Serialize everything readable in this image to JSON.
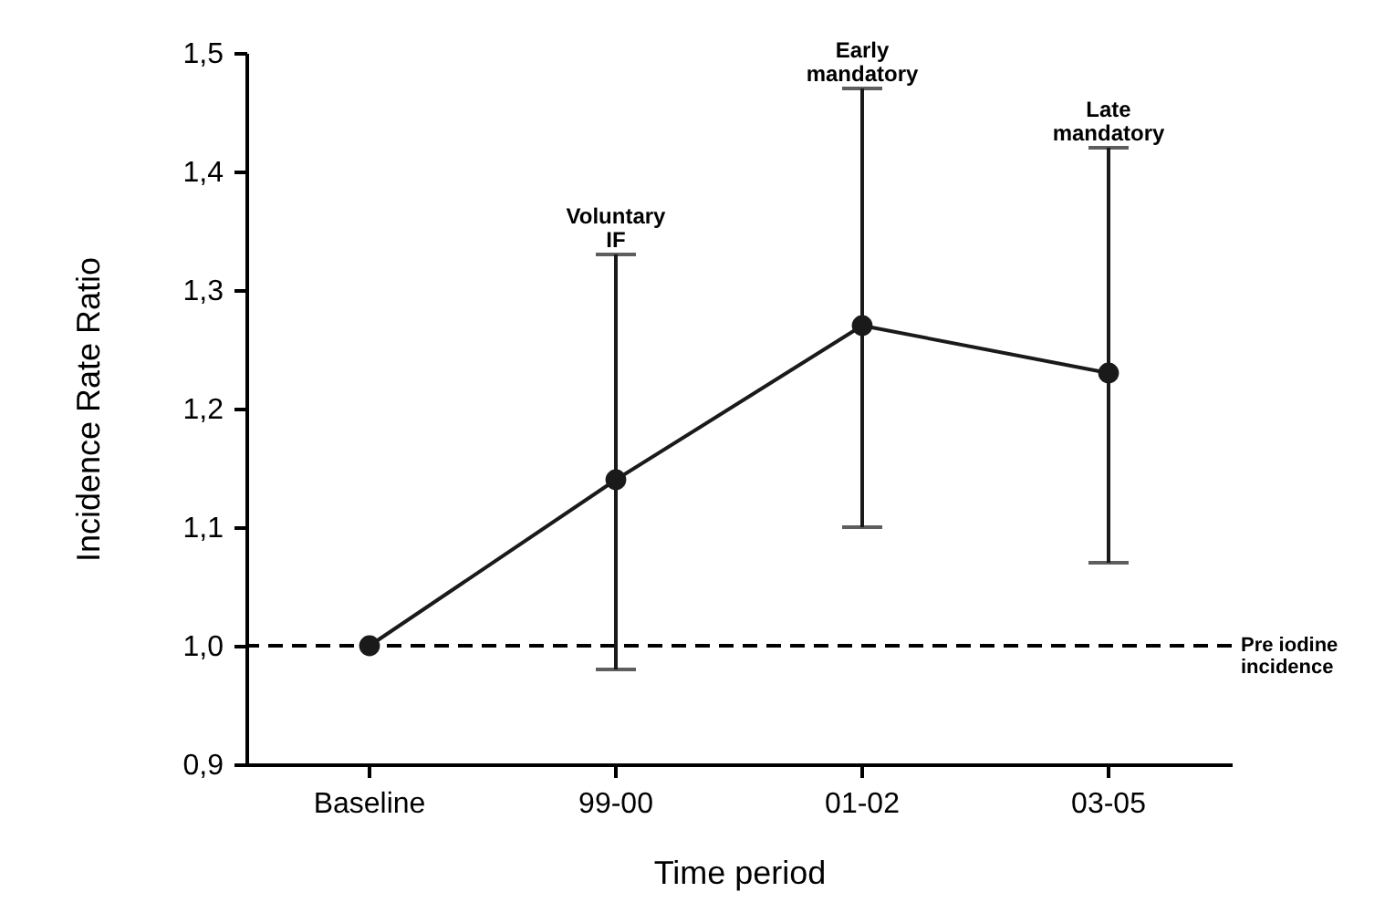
{
  "chart_data": {
    "type": "line",
    "xlabel": "Time period",
    "ylabel": "Incidence Rate Ratio",
    "categories": [
      "Baseline",
      "99-00",
      "01-02",
      "03-05"
    ],
    "values": [
      1.0,
      1.14,
      1.27,
      1.23
    ],
    "errors": [
      null,
      [
        0.98,
        1.33
      ],
      [
        1.1,
        1.47
      ],
      [
        1.07,
        1.42
      ]
    ],
    "color": "#1a1a1a",
    "marker": "circle",
    "line_style": "solid",
    "grid": false,
    "ylim": [
      0.9,
      1.5
    ],
    "yticks": [
      {
        "value": 0.9,
        "label": "0,9"
      },
      {
        "value": 1.0,
        "label": "1,0"
      },
      {
        "value": 1.1,
        "label": "1,1"
      },
      {
        "value": 1.2,
        "label": "1,2"
      },
      {
        "value": 1.3,
        "label": "1,3"
      },
      {
        "value": 1.4,
        "label": "1,4"
      },
      {
        "value": 1.5,
        "label": "1,5"
      }
    ],
    "ref_lines": [
      {
        "axis": "y",
        "value": 1.0,
        "label": "Pre iodine\nincidence",
        "line_style": "dashed"
      }
    ],
    "annotations": [
      {
        "text": "Voluntary\nIF",
        "x": "99-00",
        "y": 1.33
      },
      {
        "text": "Early\nmandatory",
        "x": "01-02",
        "y": 1.47
      },
      {
        "text": "Late\nmandatory",
        "x": "03-05",
        "y": 1.42
      }
    ]
  }
}
